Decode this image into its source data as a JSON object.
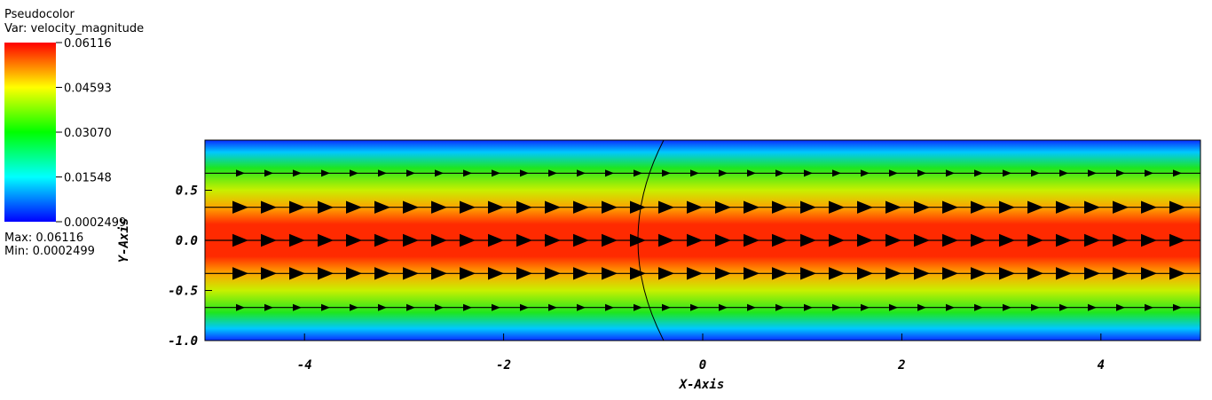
{
  "chart_data": {
    "type": "pseudocolor",
    "xlabel": "X-Axis",
    "ylabel": "Y-Axis",
    "xlim": [
      -5,
      5
    ],
    "ylim": [
      -1,
      1
    ],
    "xticks": [
      -4,
      -2,
      0,
      2,
      4
    ],
    "yticks": [
      {
        "value": -1,
        "label": "-1.0"
      },
      -0.5,
      {
        "value": 0,
        "label": "0.0"
      },
      0.5
    ],
    "streamlines": [
      0.67,
      0.33,
      0,
      -0.33,
      -0.67
    ],
    "legend": {
      "title": "Pseudocolor",
      "variable": "Var: velocity_magnitude",
      "range": [
        0.0002499,
        0.06116
      ],
      "ticks": [
        0.06116,
        0.04593,
        {
          "value": 0.0307,
          "label": "0.03070"
        },
        0.01548,
        0.0002499
      ],
      "max_text": "Max: 0.06116",
      "min_text": "Min: 0.0002499"
    }
  }
}
